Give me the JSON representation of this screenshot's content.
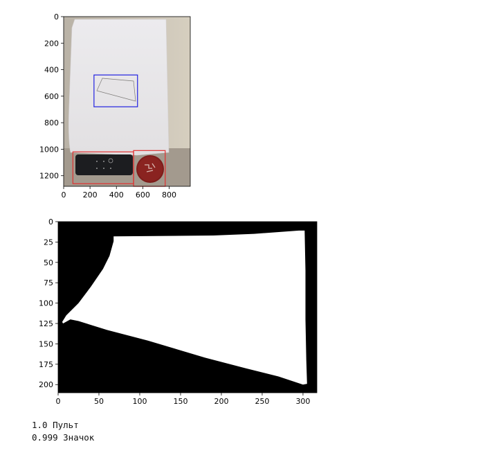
{
  "chart_data": [
    {
      "type": "image",
      "x_ticks": [
        0,
        200,
        400,
        600,
        800
      ],
      "y_ticks": [
        0,
        200,
        400,
        600,
        800,
        1000,
        1200
      ],
      "xlim": [
        0,
        960
      ],
      "ylim": [
        1280,
        0
      ],
      "boxes": [
        {
          "color": "#2020e0",
          "x0": 230,
          "y0": 440,
          "x1": 560,
          "y1": 680
        },
        {
          "color": "#e03030",
          "x0": 70,
          "y0": 1020,
          "x1": 530,
          "y1": 1260
        },
        {
          "color": "#e03030",
          "x0": 530,
          "y0": 1010,
          "x1": 770,
          "y1": 1280
        }
      ]
    },
    {
      "type": "image",
      "x_ticks": [
        0,
        50,
        100,
        150,
        200,
        250,
        300
      ],
      "y_ticks": [
        0,
        25,
        50,
        75,
        100,
        125,
        150,
        175,
        200
      ],
      "xlim": [
        0,
        317
      ],
      "ylim": [
        210,
        0
      ],
      "mask_polygon": [
        [
          68,
          18
        ],
        [
          190,
          17
        ],
        [
          240,
          15
        ],
        [
          295,
          11
        ],
        [
          302,
          11
        ],
        [
          303,
          60
        ],
        [
          303,
          120
        ],
        [
          304,
          170
        ],
        [
          305,
          199
        ],
        [
          300,
          200
        ],
        [
          270,
          190
        ],
        [
          230,
          180
        ],
        [
          180,
          167
        ],
        [
          110,
          146
        ],
        [
          60,
          133
        ],
        [
          25,
          122
        ],
        [
          15,
          120
        ],
        [
          6,
          125
        ],
        [
          5,
          123
        ],
        [
          10,
          115
        ],
        [
          25,
          100
        ],
        [
          40,
          80
        ],
        [
          55,
          58
        ],
        [
          63,
          42
        ],
        [
          68,
          24
        ]
      ]
    }
  ],
  "output_lines": [
    "1.0 Пульт",
    "0.999 Значок"
  ]
}
